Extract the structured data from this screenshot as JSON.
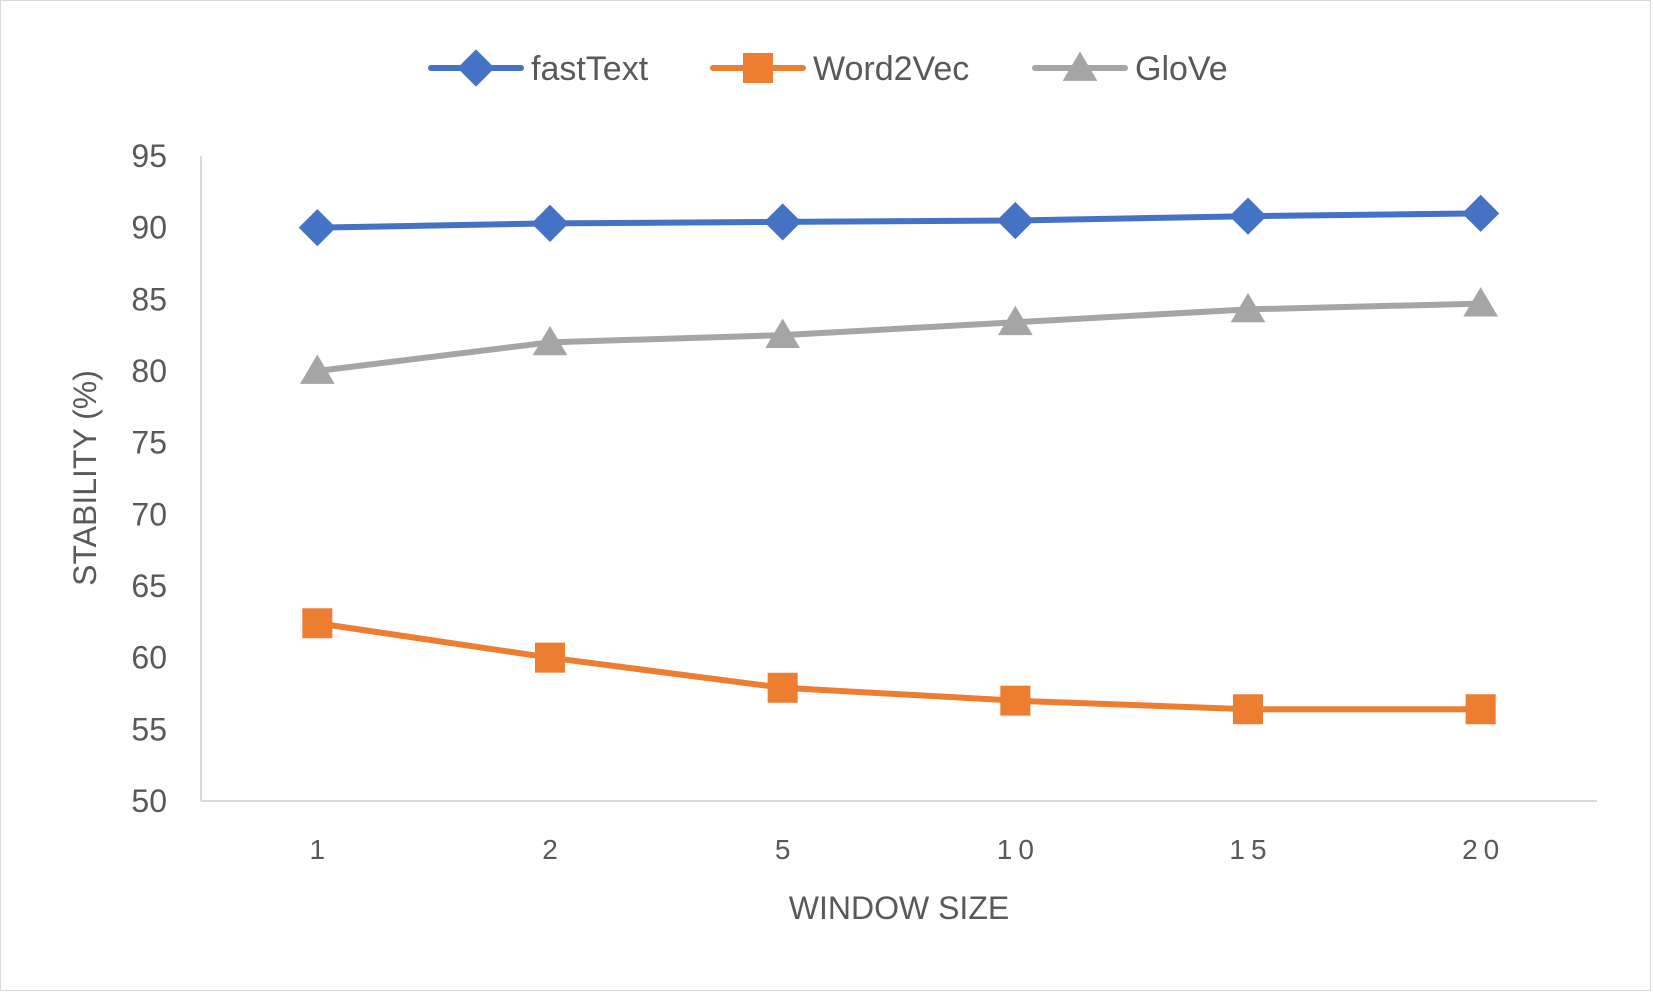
{
  "chart_data": {
    "type": "line",
    "categories": [
      "1",
      "2",
      "5",
      "10",
      "15",
      "20"
    ],
    "series": [
      {
        "name": "fastText",
        "values": [
          90.0,
          90.3,
          90.4,
          90.5,
          90.8,
          91.0
        ],
        "color": "#4472C4",
        "marker": "diamond"
      },
      {
        "name": "Word2Vec",
        "values": [
          62.4,
          60.0,
          57.9,
          57.0,
          56.4,
          56.4
        ],
        "color": "#ED7D31",
        "marker": "square"
      },
      {
        "name": "GloVe",
        "values": [
          80.0,
          82.0,
          82.5,
          83.4,
          84.3,
          84.7
        ],
        "color": "#A5A5A5",
        "marker": "triangle"
      }
    ],
    "xlabel": "WINDOW SIZE",
    "ylabel": "STABILITY (%)",
    "ylim": [
      50,
      95
    ],
    "yticks": [
      "50",
      "55",
      "60",
      "65",
      "70",
      "75",
      "80",
      "85",
      "90",
      "95"
    ],
    "grid": false,
    "legend": "top-center"
  }
}
